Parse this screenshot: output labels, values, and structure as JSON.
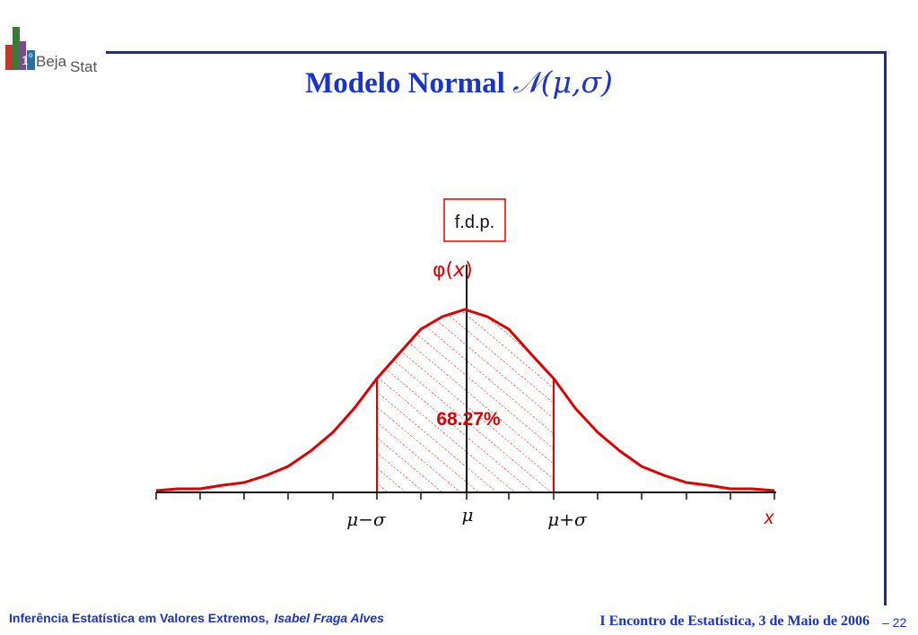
{
  "logo": {
    "prefix": "1",
    "superscript": "o",
    "word1": "Beja",
    "word2": "Stat"
  },
  "title": {
    "text": "Modelo Normal",
    "math": "𝒩(μ,σ)"
  },
  "diagram": {
    "pdf_label": "f.d.p.",
    "y_axis_label": "φ(x)",
    "y_axis_phi": "φ",
    "y_axis_var": "x",
    "area_label": "68.27%",
    "x_axis_label": "x",
    "tick_labels": {
      "minus_sigma": "μ−σ",
      "mu": "μ",
      "plus_sigma": "μ+σ"
    },
    "curve_color": "#e00000",
    "label_color": "#e00000"
  },
  "footer": {
    "left_title": "Inferência Estatística em Valores Extremos,",
    "left_author": "Isabel Fraga Alves",
    "right": "I Encontro de Estatística, 3 de Maio de 2006",
    "page": "– 22"
  }
}
